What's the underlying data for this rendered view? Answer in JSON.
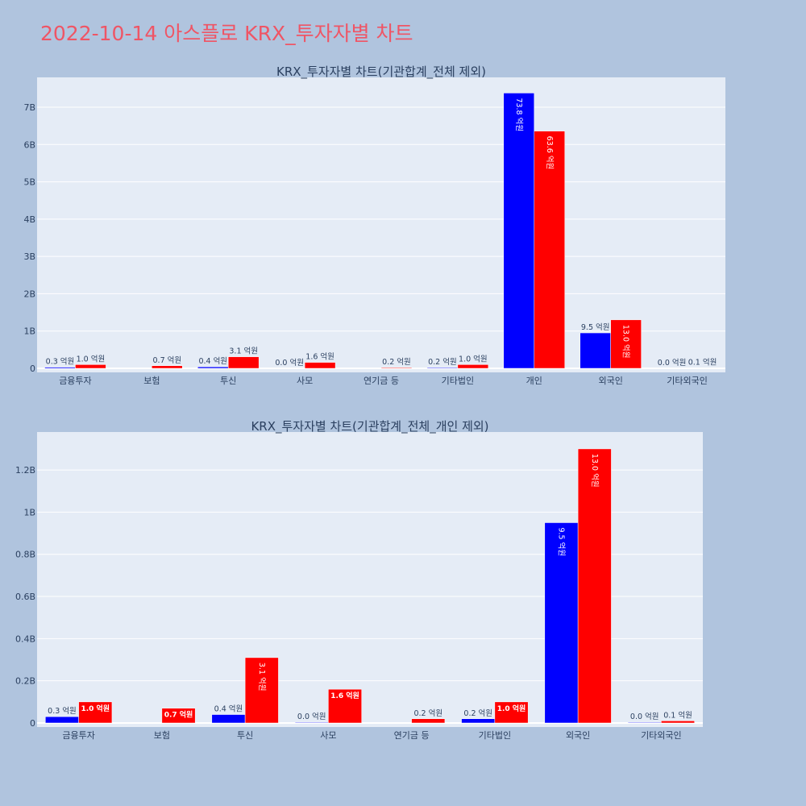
{
  "page_title": "2022-10-14 아스플로 KRX_투자자별 차트",
  "colors": {
    "background": "#b0c4de",
    "plot_bg": "#e5ecf6",
    "title": "#ef5565",
    "series_a": "#0000ff",
    "series_b": "#ff0000"
  },
  "chart_data": [
    {
      "type": "bar",
      "title": "KRX_투자자별 차트(기관합계_전체 제외)",
      "categories": [
        "금융투자",
        "보험",
        "투신",
        "사모",
        "연기금 등",
        "기타법인",
        "개인",
        "외국인",
        "기타외국인"
      ],
      "yticks": [
        0,
        1000000000,
        2000000000,
        3000000000,
        4000000000,
        5000000000,
        6000000000,
        7000000000
      ],
      "ytick_labels": [
        "0",
        "1B",
        "2B",
        "3B",
        "4B",
        "5B",
        "6B",
        "7B"
      ],
      "ylim": [
        0,
        7800000000
      ],
      "grid": true,
      "series": [
        {
          "color": "#0000ff",
          "values": [
            30000000,
            0,
            40000000,
            0,
            0,
            20000000,
            7380000000,
            950000000,
            0
          ],
          "labels": [
            "0.3 억원",
            "",
            "0.4 억원",
            "0.0 억원",
            "",
            "0.2 억원",
            "73.8 억원",
            "9.5 억원",
            "0.0 억원"
          ]
        },
        {
          "color": "#ff0000",
          "values": [
            100000000,
            70000000,
            310000000,
            160000000,
            20000000,
            100000000,
            6360000000,
            1300000000,
            10000000
          ],
          "labels": [
            "1.0 억원",
            "0.7 억원",
            "3.1 억원",
            "1.6 억원",
            "0.2 억원",
            "1.0 억원",
            "63.6 억원",
            "13.0 억원",
            "0.1 억원"
          ]
        }
      ]
    },
    {
      "type": "bar",
      "title": "KRX_투자자별 차트(기관합계_전체_개인 제외)",
      "categories": [
        "금융투자",
        "보험",
        "투신",
        "사모",
        "연기금 등",
        "기타법인",
        "외국인",
        "기타외국인"
      ],
      "yticks": [
        0,
        200000000,
        400000000,
        600000000,
        800000000,
        1000000000,
        1200000000
      ],
      "ytick_labels": [
        "0",
        "0.2B",
        "0.4B",
        "0.6B",
        "0.8B",
        "1B",
        "1.2B"
      ],
      "ylim": [
        0,
        1380000000
      ],
      "grid": true,
      "series": [
        {
          "color": "#0000ff",
          "values": [
            30000000,
            0,
            40000000,
            3000000,
            0,
            20000000,
            950000000,
            3000000
          ],
          "labels": [
            "0.3 억원",
            "",
            "0.4 억원",
            "0.0 억원",
            "",
            "0.2 억원",
            "9.5 억원",
            "0.0 억원"
          ]
        },
        {
          "color": "#ff0000",
          "values": [
            100000000,
            70000000,
            310000000,
            160000000,
            20000000,
            100000000,
            1300000000,
            10000000
          ],
          "labels": [
            "1.0 억원",
            "0.7 억원",
            "3.1 억원",
            "1.6 억원",
            "0.2 억원",
            "1.0 억원",
            "13.0 억원",
            "0.1 억원"
          ]
        }
      ]
    }
  ]
}
